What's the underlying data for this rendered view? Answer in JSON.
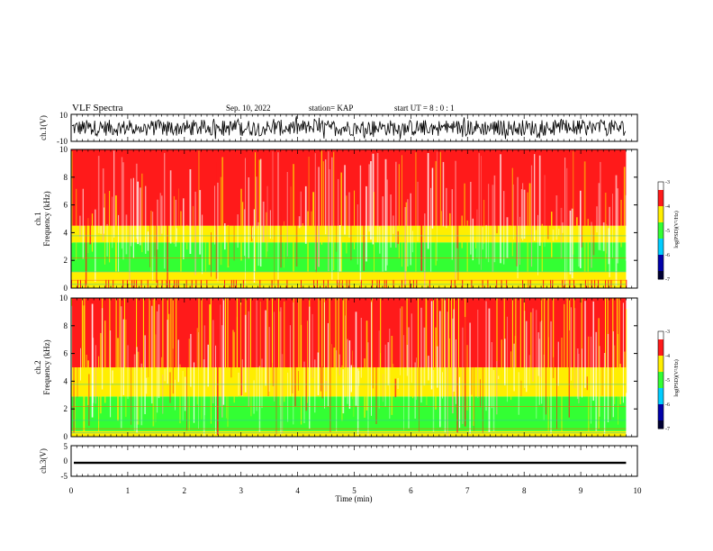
{
  "header": {
    "title": "VLF Spectra",
    "date": "Sep. 10, 2022",
    "station": "station= KAP",
    "start": "start  UT  =   8  : 0  : 1"
  },
  "chart_data": [
    {
      "type": "line",
      "panel": "ch1-waveform",
      "ylabel": "ch.1(V)",
      "ylim": [
        -10,
        10
      ],
      "ytick_labels": [
        "10",
        "-10"
      ],
      "xlim": [
        0,
        9.8
      ],
      "x_unit": "min",
      "series": [
        {
          "style": "noise",
          "center": 0,
          "amplitude": 6
        }
      ]
    },
    {
      "type": "heatmap",
      "panel": "ch1-spectrogram",
      "ylabel_line1": "ch.1",
      "ylabel_line2": "Frequency  (kHz)",
      "ylim": [
        0,
        10
      ],
      "ytick_labels": [
        "0",
        "2",
        "4",
        "6",
        "8",
        "10"
      ],
      "xlim": [
        0,
        9.8
      ],
      "frequency_bands_khz": [
        {
          "range": [
            0,
            0.6
          ],
          "level": "yellow-red"
        },
        {
          "range": [
            0.6,
            1.2
          ],
          "level": "yellow"
        },
        {
          "range": [
            1.2,
            3.3
          ],
          "level": "green"
        },
        {
          "range": [
            3.3,
            4.5
          ],
          "level": "yellow"
        },
        {
          "range": [
            4.5,
            10
          ],
          "level": "red"
        }
      ],
      "colorbar": {
        "label": "log(PSD)(V²/Hz)",
        "range": [
          -7,
          -3
        ],
        "tick_labels": [
          "-3",
          "-4",
          "-5",
          "-6",
          "-7"
        ]
      }
    },
    {
      "type": "heatmap",
      "panel": "ch2-spectrogram",
      "ylabel_line1": "ch.2",
      "ylabel_line2": "Frequency  (kHz)",
      "ylim": [
        0,
        10
      ],
      "ytick_labels": [
        "0",
        "2",
        "4",
        "6",
        "8",
        "10"
      ],
      "xlim": [
        0,
        9.8
      ],
      "frequency_bands_khz": [
        {
          "range": [
            0,
            0.4
          ],
          "level": "yellow"
        },
        {
          "range": [
            0.4,
            2.9
          ],
          "level": "green"
        },
        {
          "range": [
            2.9,
            5.0
          ],
          "level": "yellow"
        },
        {
          "range": [
            5.0,
            10
          ],
          "level": "red-yellow"
        }
      ],
      "colorbar": {
        "label": "log(PSD)(V²/Hz)",
        "range": [
          -7,
          -3
        ],
        "tick_labels": [
          "-3",
          "-4",
          "-5",
          "-6",
          "-7"
        ]
      }
    },
    {
      "type": "line",
      "panel": "ch3-waveform",
      "ylabel": "ch.3(V)",
      "ylim": [
        -5,
        5
      ],
      "ytick_labels": [
        "5",
        "0",
        "-5"
      ],
      "xlim": [
        0,
        9.8
      ],
      "series": [
        {
          "style": "thick-band",
          "center": -0.6,
          "half_width": 0.35
        }
      ]
    }
  ],
  "xaxis": {
    "label": "Time  (min)",
    "lim": [
      0,
      10
    ],
    "tick_labels": [
      "0",
      "1",
      "2",
      "3",
      "4",
      "5",
      "6",
      "7",
      "8",
      "9",
      "10"
    ]
  },
  "colors": {
    "red": "#ff1a1a",
    "yellow": "#ffee00",
    "green": "#33ff33",
    "white": "#ffffff",
    "waveform": "#000000"
  }
}
